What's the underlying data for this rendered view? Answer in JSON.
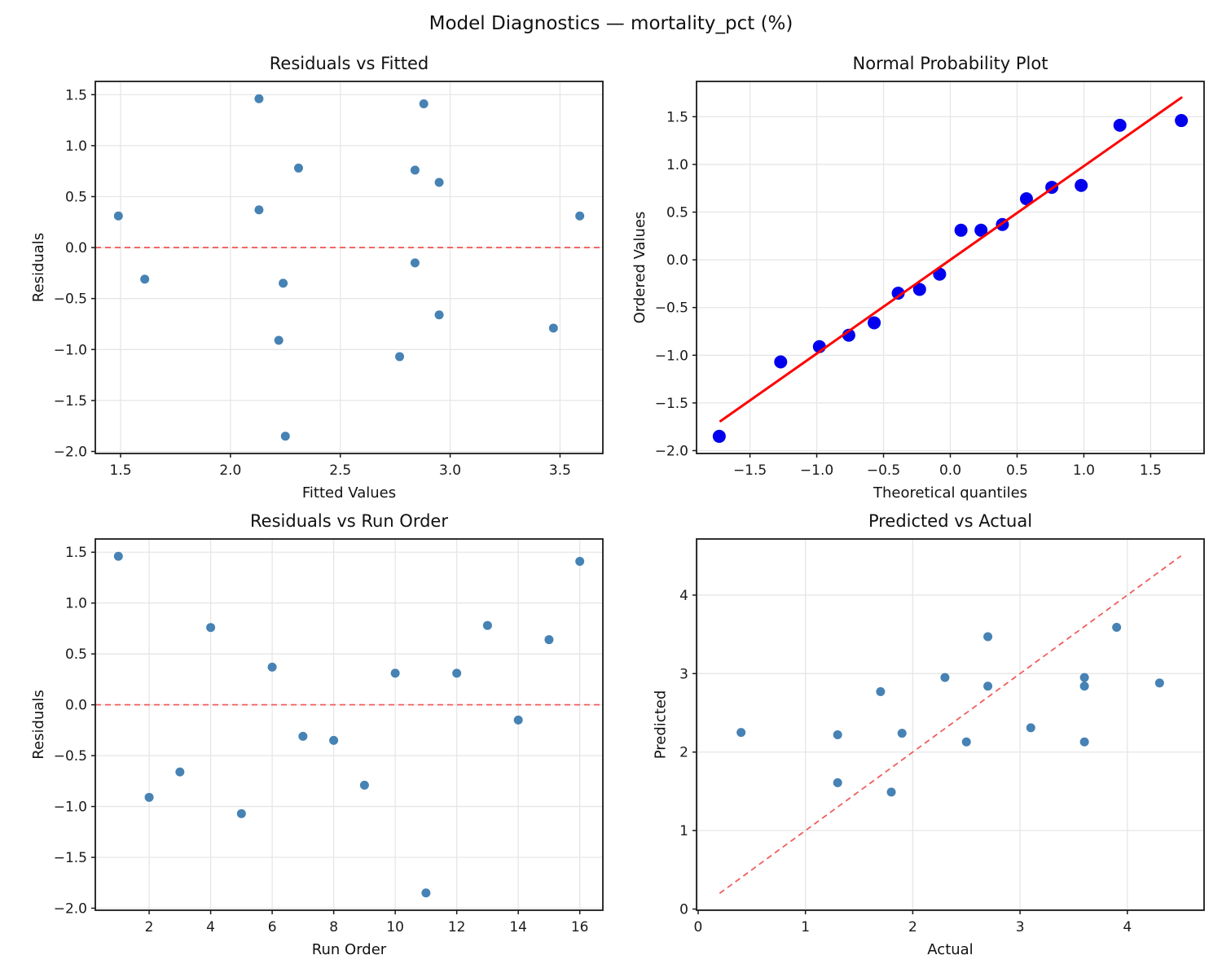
{
  "figure": {
    "suptitle": "Model Diagnostics — mortality_pct (%)",
    "colors": {
      "scatter": "#4682B4",
      "probplot_marker": "#0000EE",
      "fit_line": "#FF0000",
      "ref_line": "#F15E5E",
      "grid": "#E6E6E6",
      "spine": "#1A1A1A",
      "text": "#1A1A1A"
    }
  },
  "chart_data": [
    {
      "id": "residuals-vs-fitted",
      "type": "scatter",
      "title": "Residuals vs Fitted",
      "xlabel": "Fitted Values",
      "ylabel": "Residuals",
      "xlim": [
        1.385,
        3.695
      ],
      "ylim": [
        -2.02,
        1.63
      ],
      "xticks": [
        1.5,
        2.0,
        2.5,
        3.0,
        3.5
      ],
      "xtick_labels": [
        "1.5",
        "2.0",
        "2.5",
        "3.0",
        "3.5"
      ],
      "yticks": [
        -2.0,
        -1.5,
        -1.0,
        -0.5,
        0.0,
        0.5,
        1.0,
        1.5
      ],
      "ytick_labels": [
        "−2.0",
        "−1.5",
        "−1.0",
        "−0.5",
        "0.0",
        "0.5",
        "1.0",
        "1.5"
      ],
      "grid": true,
      "points": {
        "x": [
          1.49,
          1.61,
          2.13,
          2.13,
          2.22,
          2.24,
          2.25,
          2.31,
          2.77,
          2.84,
          2.84,
          2.88,
          2.95,
          2.95,
          3.47,
          3.59
        ],
        "y": [
          0.31,
          -0.31,
          1.46,
          0.37,
          -0.91,
          -0.35,
          -1.85,
          0.78,
          -1.07,
          0.76,
          -0.15,
          1.41,
          0.64,
          -0.66,
          -0.79,
          0.31
        ]
      },
      "marker": {
        "color": "#4682B4",
        "radius": 5.5
      },
      "lines": [
        {
          "x1": 1.385,
          "y1": 0,
          "x2": 3.695,
          "y2": 0,
          "dashed": true,
          "color": "#F15E5E",
          "width": 1.8,
          "over_points": false
        }
      ]
    },
    {
      "id": "normal-probability-plot",
      "type": "scatter",
      "title": "Normal Probability Plot",
      "xlabel": "Theoretical quantiles",
      "ylabel": "Ordered Values",
      "xlim": [
        -1.9,
        1.9
      ],
      "ylim": [
        -2.03,
        1.87
      ],
      "xticks": [
        -1.5,
        -1.0,
        -0.5,
        0.0,
        0.5,
        1.0,
        1.5
      ],
      "xtick_labels": [
        "−1.5",
        "−1.0",
        "−0.5",
        "0.0",
        "0.5",
        "1.0",
        "1.5"
      ],
      "yticks": [
        -2.0,
        -1.5,
        -1.0,
        -0.5,
        0.0,
        0.5,
        1.0,
        1.5
      ],
      "ytick_labels": [
        "−2.0",
        "−1.5",
        "−1.0",
        "−0.5",
        "0.0",
        "0.5",
        "1.0",
        "1.5"
      ],
      "grid": true,
      "points": {
        "x": [
          -1.73,
          -1.27,
          -0.98,
          -0.76,
          -0.57,
          -0.39,
          -0.23,
          -0.08,
          0.08,
          0.23,
          0.39,
          0.57,
          0.76,
          0.98,
          1.27,
          1.73
        ],
        "y": [
          -1.85,
          -1.07,
          -0.91,
          -0.79,
          -0.66,
          -0.35,
          -0.31,
          -0.15,
          0.31,
          0.31,
          0.37,
          0.64,
          0.76,
          0.78,
          1.41,
          1.46
        ]
      },
      "marker": {
        "color": "#0000EE",
        "radius": 8
      },
      "lines": [
        {
          "x1": -1.72,
          "y1": -1.69,
          "x2": 1.73,
          "y2": 1.7,
          "dashed": false,
          "color": "#FF0000",
          "width": 3,
          "over_points": true
        }
      ]
    },
    {
      "id": "residuals-vs-run-order",
      "type": "scatter",
      "title": "Residuals vs Run Order",
      "xlabel": "Run Order",
      "ylabel": "Residuals",
      "xlim": [
        0.25,
        16.75
      ],
      "ylim": [
        -2.02,
        1.63
      ],
      "xticks": [
        2,
        4,
        6,
        8,
        10,
        12,
        14,
        16
      ],
      "xtick_labels": [
        "2",
        "4",
        "6",
        "8",
        "10",
        "12",
        "14",
        "16"
      ],
      "yticks": [
        -2.0,
        -1.5,
        -1.0,
        -0.5,
        0.0,
        0.5,
        1.0,
        1.5
      ],
      "ytick_labels": [
        "−2.0",
        "−1.5",
        "−1.0",
        "−0.5",
        "0.0",
        "0.5",
        "1.0",
        "1.5"
      ],
      "grid": true,
      "points": {
        "x": [
          1,
          2,
          3,
          4,
          5,
          6,
          7,
          8,
          9,
          10,
          11,
          12,
          13,
          14,
          15,
          16
        ],
        "y": [
          1.46,
          -0.91,
          -0.66,
          0.76,
          -1.07,
          0.37,
          -0.31,
          -0.35,
          -0.79,
          0.31,
          -1.85,
          0.31,
          0.78,
          -0.15,
          0.64,
          1.41
        ]
      },
      "marker": {
        "color": "#4682B4",
        "radius": 5.5
      },
      "lines": [
        {
          "x1": 0.25,
          "y1": 0,
          "x2": 16.75,
          "y2": 0,
          "dashed": true,
          "color": "#F15E5E",
          "width": 1.8,
          "over_points": false
        }
      ]
    },
    {
      "id": "predicted-vs-actual",
      "type": "scatter",
      "title": "Predicted vs Actual",
      "xlabel": "Actual",
      "ylabel": "Predicted",
      "xlim": [
        -0.015,
        4.715
      ],
      "ylim": [
        -0.015,
        4.715
      ],
      "xticks": [
        0,
        1,
        2,
        3,
        4
      ],
      "xtick_labels": [
        "0",
        "1",
        "2",
        "3",
        "4"
      ],
      "yticks": [
        0,
        1,
        2,
        3,
        4
      ],
      "ytick_labels": [
        "0",
        "1",
        "2",
        "3",
        "4"
      ],
      "grid": true,
      "points": {
        "x": [
          0.4,
          1.3,
          1.3,
          1.7,
          1.8,
          1.9,
          2.3,
          2.5,
          2.7,
          2.7,
          3.1,
          3.6,
          3.6,
          3.6,
          3.9,
          4.3
        ],
        "y": [
          2.25,
          2.22,
          1.61,
          2.77,
          1.49,
          2.24,
          2.95,
          2.13,
          3.47,
          2.84,
          2.31,
          2.95,
          2.84,
          2.13,
          3.59,
          2.88
        ]
      },
      "marker": {
        "color": "#4682B4",
        "radius": 5.5
      },
      "lines": [
        {
          "x1": 0.2,
          "y1": 0.2,
          "x2": 4.5,
          "y2": 4.5,
          "dashed": true,
          "color": "#F15E5E",
          "width": 1.8,
          "over_points": false
        }
      ]
    }
  ]
}
